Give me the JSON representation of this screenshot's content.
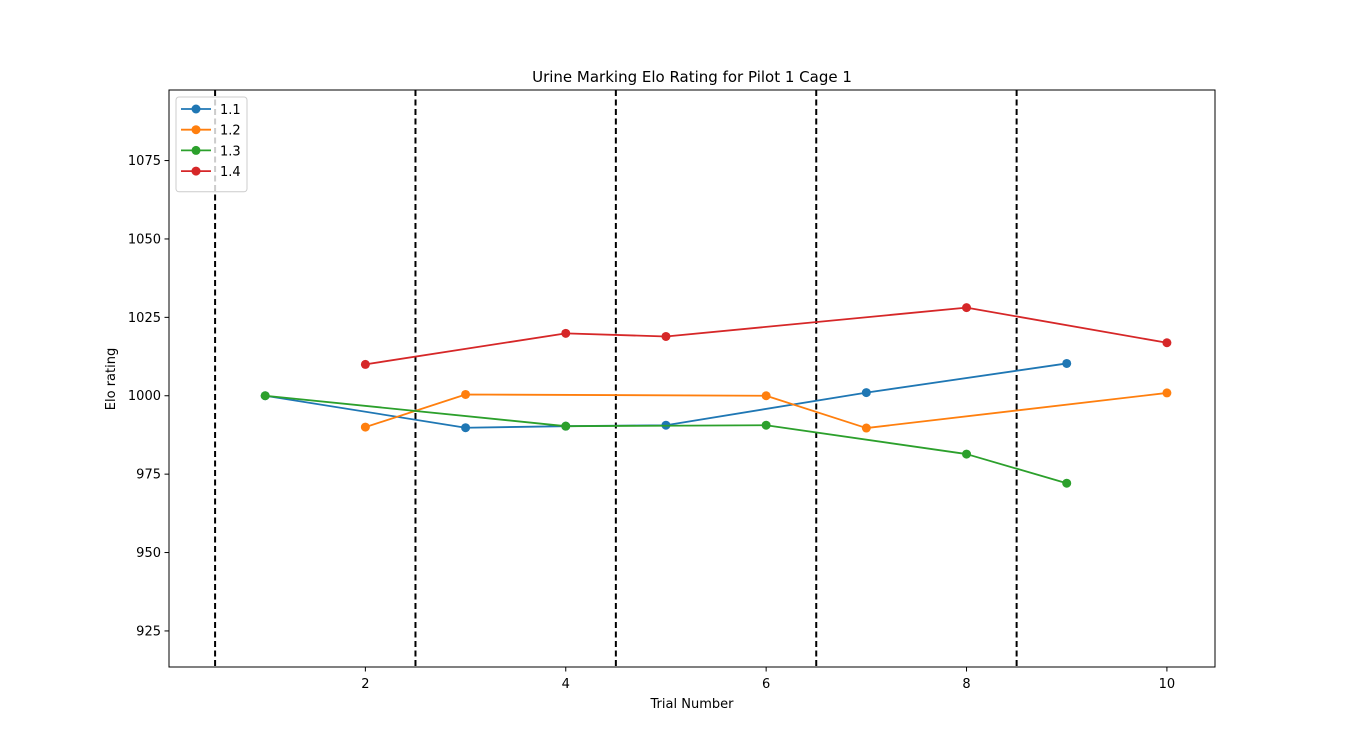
{
  "chart_data": {
    "type": "line",
    "title": "Urine Marking Elo Rating for Pilot 1 Cage 1",
    "xlabel": "Trial Number",
    "ylabel": "Elo rating",
    "xlim": [
      0.04,
      10.48
    ],
    "ylim": [
      913.5,
      1097.5
    ],
    "xticks": [
      2,
      4,
      6,
      8,
      10
    ],
    "yticks": [
      925,
      950,
      975,
      1000,
      1025,
      1050,
      1075
    ],
    "grid": false,
    "legend_position": "upper-left",
    "vertical_dashed_lines": [
      0.5,
      2.5,
      4.5,
      6.5,
      8.5
    ],
    "series": [
      {
        "name": "1.1",
        "color": "#1f77b4",
        "x": [
          1,
          3,
          4,
          5,
          7,
          9
        ],
        "y": [
          1000,
          989.8,
          990.3,
          990.6,
          1001,
          1010.3
        ]
      },
      {
        "name": "1.2",
        "color": "#ff7f0e",
        "x": [
          2,
          3,
          6,
          7,
          10
        ],
        "y": [
          990,
          1000.4,
          1000,
          989.7,
          1000.9
        ]
      },
      {
        "name": "1.3",
        "color": "#2ca02c",
        "x": [
          1,
          4,
          6,
          8,
          9
        ],
        "y": [
          1000,
          990.3,
          990.6,
          981.4,
          972.1
        ]
      },
      {
        "name": "1.4",
        "color": "#d62728",
        "x": [
          2,
          4,
          5,
          8,
          10
        ],
        "y": [
          1010,
          1019.9,
          1018.9,
          1028.1,
          1016.9
        ]
      }
    ]
  }
}
